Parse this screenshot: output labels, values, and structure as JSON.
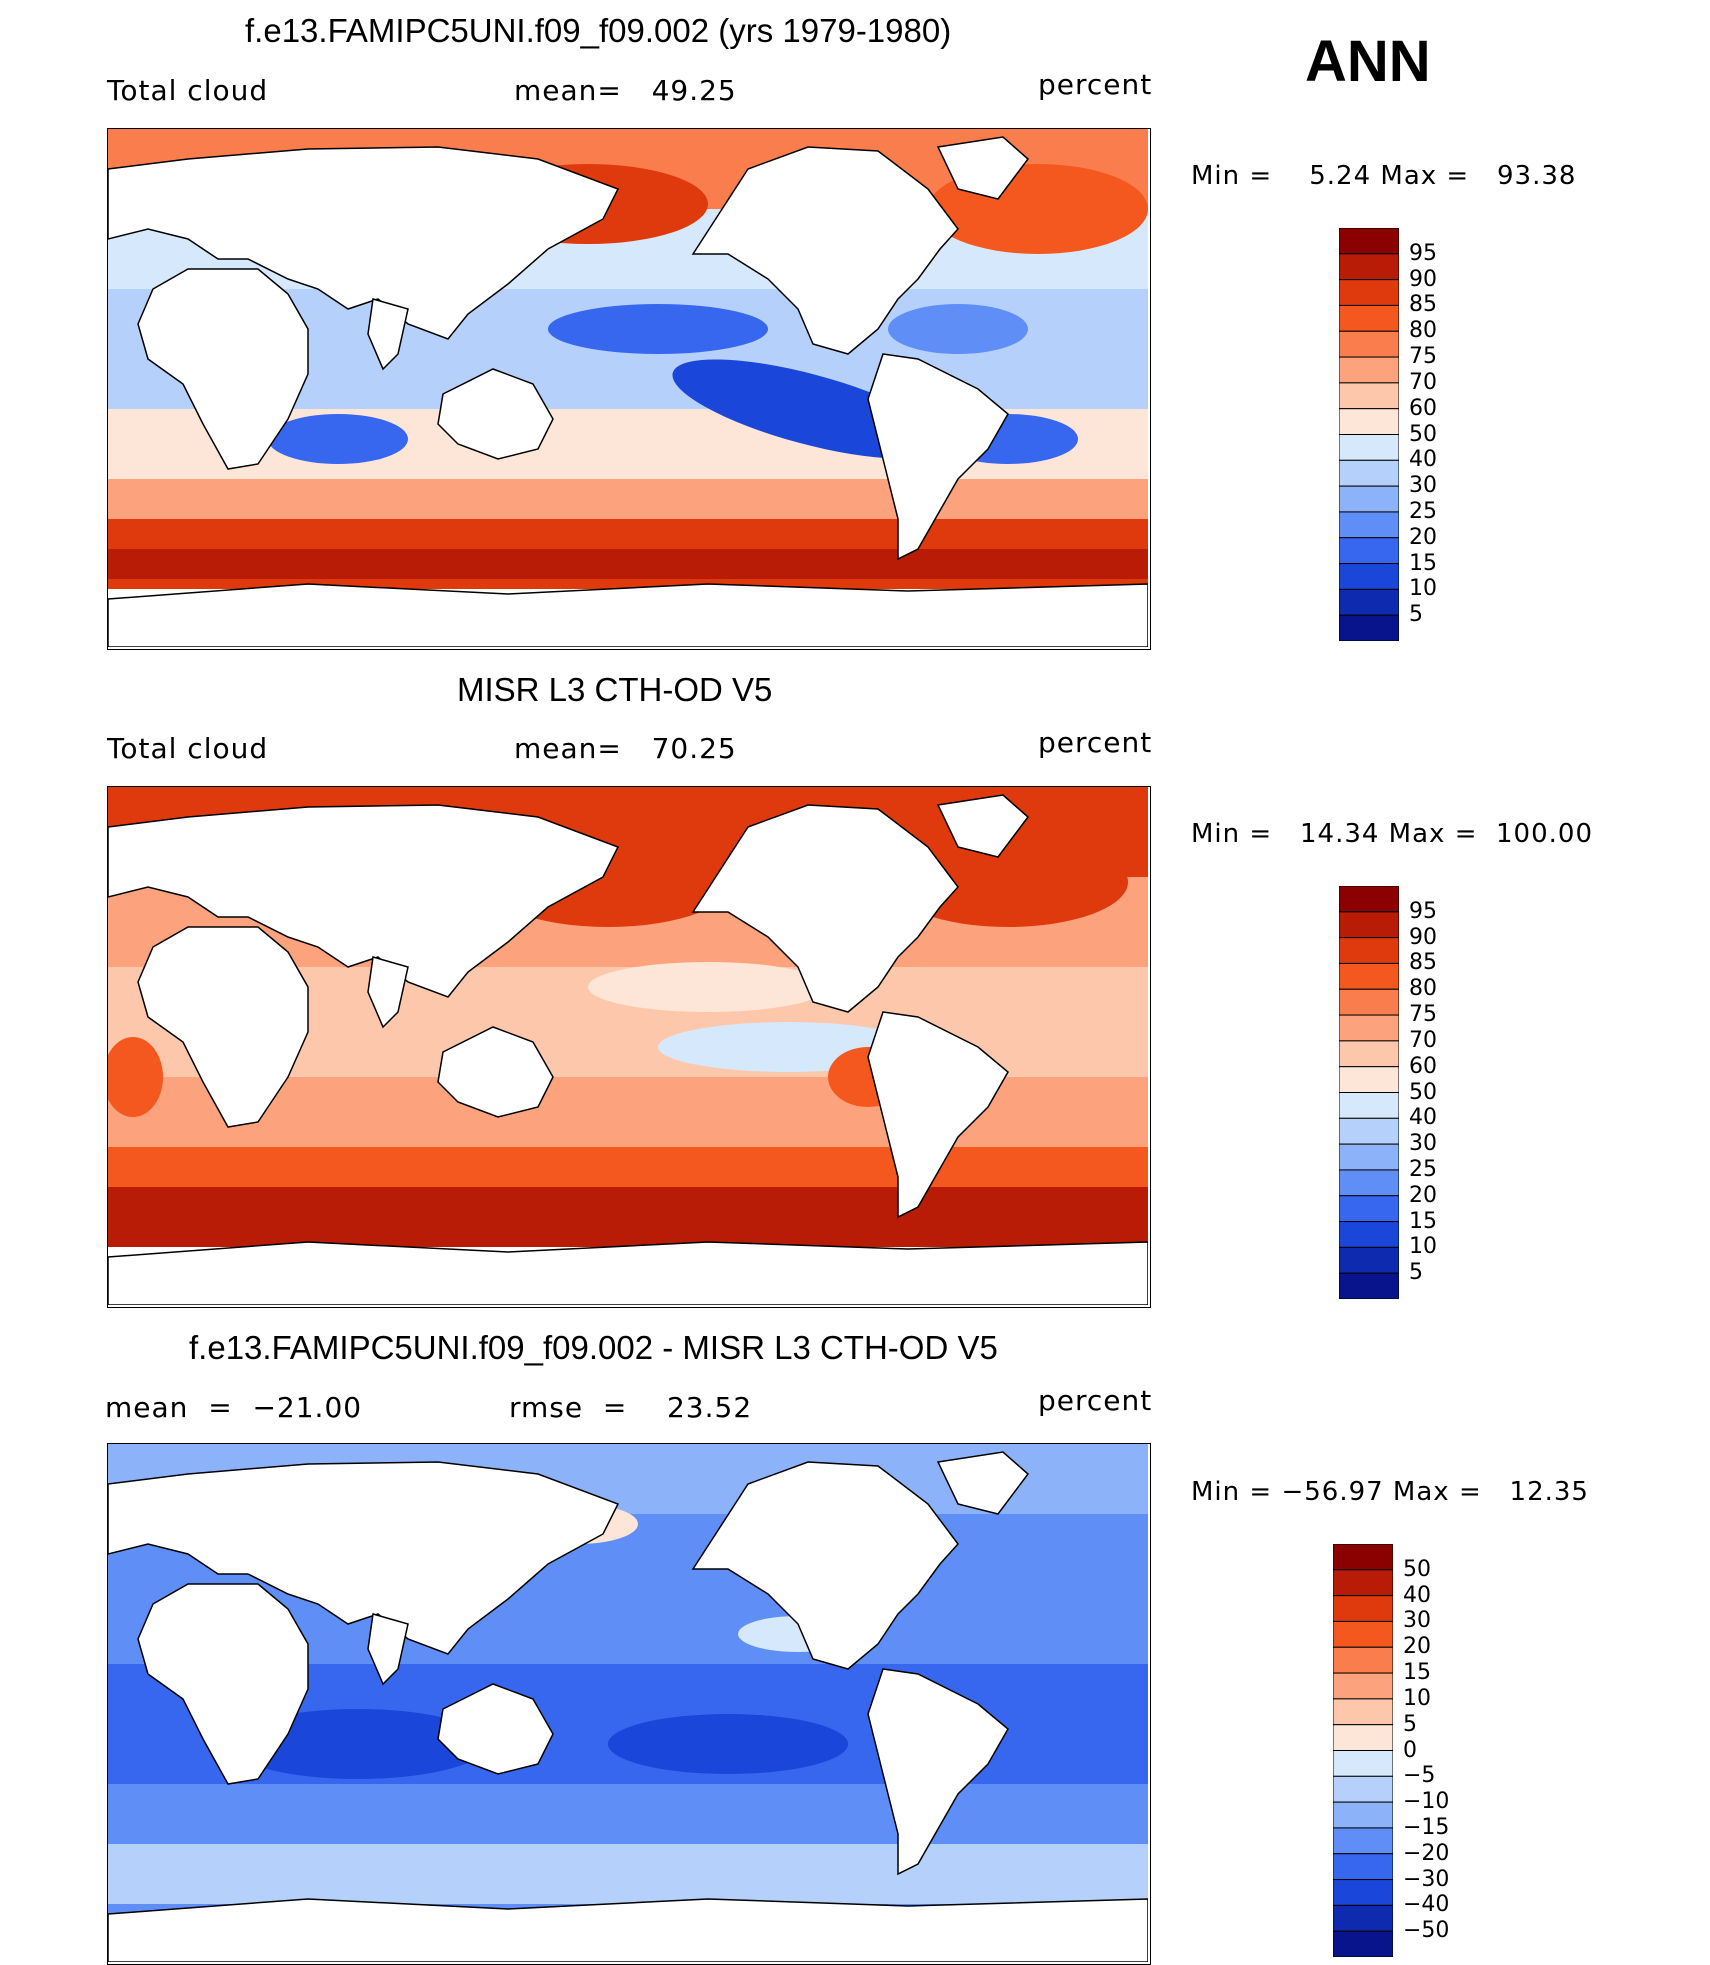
{
  "header": {
    "season": "ANN"
  },
  "chart_data": [
    {
      "type": "heatmap",
      "title": "f.e13.FAMIPC5UNI.f09_f09.002 (yrs 1979-1980)",
      "left_label": "Total cloud",
      "center_label": "mean=   49.25",
      "units": "percent",
      "minmax": "Min =    5.24 Max =   93.38",
      "colorbar": {
        "levels": [
          "95",
          "90",
          "85",
          "80",
          "75",
          "70",
          "60",
          "50",
          "40",
          "30",
          "25",
          "20",
          "15",
          "10",
          "5"
        ],
        "colors": [
          "#8b0000",
          "#b81c07",
          "#de3a0e",
          "#f4581f",
          "#fa7d4d",
          "#fca27c",
          "#fdc7ab",
          "#fde6d7",
          "#d6e8fb",
          "#b4d0fb",
          "#8cb3fa",
          "#5f8ef6",
          "#3767ef",
          "#1a46d9",
          "#0e2bb0",
          "#08148c"
        ]
      }
    },
    {
      "type": "heatmap",
      "title": "MISR L3 CTH-OD V5",
      "left_label": "Total cloud",
      "center_label": "mean=   70.25",
      "units": "percent",
      "minmax": "Min =   14.34 Max =  100.00",
      "colorbar": {
        "levels": [
          "95",
          "90",
          "85",
          "80",
          "75",
          "70",
          "60",
          "50",
          "40",
          "30",
          "25",
          "20",
          "15",
          "10",
          "5"
        ],
        "colors": [
          "#8b0000",
          "#b81c07",
          "#de3a0e",
          "#f4581f",
          "#fa7d4d",
          "#fca27c",
          "#fdc7ab",
          "#fde6d7",
          "#d6e8fb",
          "#b4d0fb",
          "#8cb3fa",
          "#5f8ef6",
          "#3767ef",
          "#1a46d9",
          "#0e2bb0",
          "#08148c"
        ]
      }
    },
    {
      "type": "heatmap",
      "title": "f.e13.FAMIPC5UNI.f09_f09.002 - MISR L3 CTH-OD V5",
      "left_label": "mean  =  −21.00",
      "center_label": "rmse  =    23.52",
      "units": "percent",
      "minmax": "Min = −56.97 Max =   12.35",
      "colorbar": {
        "levels": [
          "50",
          "40",
          "30",
          "20",
          "15",
          "10",
          "5",
          "0",
          "−5",
          "−10",
          "−15",
          "−20",
          "−30",
          "−40",
          "−50"
        ],
        "colors": [
          "#8b0000",
          "#b81c07",
          "#de3a0e",
          "#f4581f",
          "#fa7d4d",
          "#fca27c",
          "#fdc7ab",
          "#fde6d7",
          "#d6e8fb",
          "#b4d0fb",
          "#8cb3fa",
          "#5f8ef6",
          "#3767ef",
          "#1a46d9",
          "#0e2bb0",
          "#08148c"
        ]
      }
    }
  ]
}
